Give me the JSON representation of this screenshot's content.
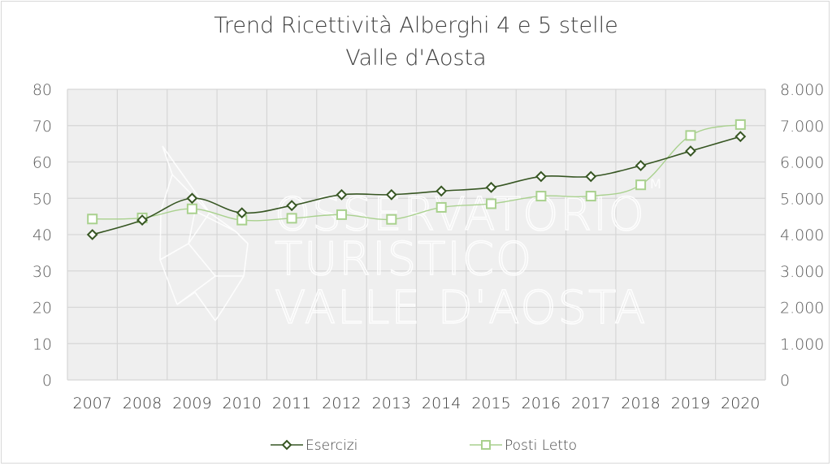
{
  "chart_data": {
    "type": "line",
    "title": "Trend Ricettività Alberghi 4 e 5 stelle",
    "subtitle": "Valle d'Aosta",
    "categories": [
      "2007",
      "2008",
      "2009",
      "2010",
      "2011",
      "2012",
      "2013",
      "2014",
      "2015",
      "2016",
      "2017",
      "2018",
      "2019",
      "2020"
    ],
    "y_left": {
      "range": [
        0,
        80
      ],
      "ticks": [
        "0",
        "10",
        "20",
        "30",
        "40",
        "50",
        "60",
        "70",
        "80"
      ]
    },
    "y_right": {
      "range": [
        0,
        8000
      ],
      "ticks": [
        "0",
        "1.000",
        "2.000",
        "3.000",
        "4.000",
        "5.000",
        "6.000",
        "7.000",
        "8.000"
      ]
    },
    "grid": true,
    "legend_position": "bottom",
    "series": [
      {
        "name": "Esercizi",
        "axis": "left",
        "marker": "diamond",
        "color": "#375623",
        "values": [
          40,
          44,
          50,
          46,
          48,
          51,
          51,
          52,
          53,
          56,
          56,
          59,
          63,
          67
        ]
      },
      {
        "name": "Posti Letto",
        "axis": "right",
        "marker": "square",
        "color": "#a9d18e",
        "values": [
          4430,
          4460,
          4710,
          4400,
          4450,
          4550,
          4420,
          4750,
          4850,
          5060,
          5060,
          5370,
          6730,
          7030
        ]
      }
    ],
    "watermark": [
      "OSSERVATORIO",
      "TURISTICO",
      "VALLE D'AOSTA"
    ]
  }
}
